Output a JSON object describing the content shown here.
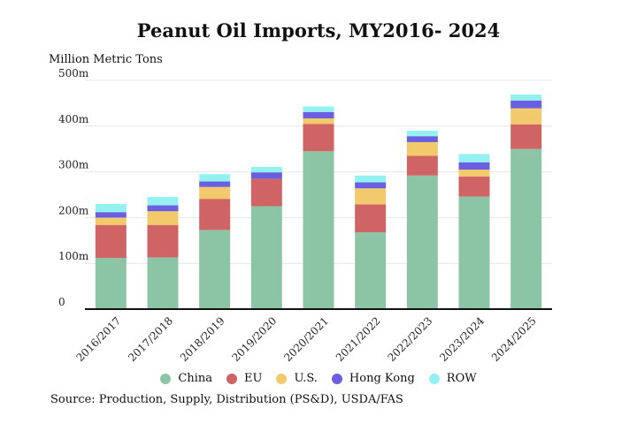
{
  "chart_data": {
    "type": "bar",
    "stacked": true,
    "title": "Peanut Oil Imports, MY2016- 2024",
    "ylabel": "Million Metric Tons",
    "xlabel": "",
    "ylim": [
      0,
      500
    ],
    "yticks": [
      0,
      100,
      200,
      300,
      400,
      500
    ],
    "ytick_labels": [
      "0",
      "100m",
      "200m",
      "300m",
      "400m",
      "500m"
    ],
    "grid": true,
    "legend_position": "bottom",
    "categories": [
      "2016/2017",
      "2017/2018",
      "2018/2019",
      "2019/2020",
      "2020/2021",
      "2021/2022",
      "2022/2023",
      "2023/2024",
      "2024/2025"
    ],
    "series": [
      {
        "name": "China",
        "color": "#8cc5a6",
        "values": [
          112,
          113,
          173,
          225,
          345,
          168,
          292,
          246,
          350
        ]
      },
      {
        "name": "EU",
        "color": "#d06464",
        "values": [
          72,
          71,
          68,
          60,
          60,
          61,
          43,
          44,
          54
        ]
      },
      {
        "name": "U.S.",
        "color": "#f2c96b",
        "values": [
          16,
          30,
          26,
          0,
          12,
          35,
          30,
          15,
          35
        ]
      },
      {
        "name": "Hong Kong",
        "color": "#6a5fe0",
        "values": [
          12,
          13,
          12,
          14,
          14,
          13,
          13,
          16,
          17
        ]
      },
      {
        "name": "ROW",
        "color": "#94f1f1",
        "values": [
          18,
          18,
          16,
          12,
          12,
          15,
          12,
          18,
          13
        ]
      }
    ]
  },
  "source": "Source: Production, Supply, Distribution (PS&D), USDA/FAS"
}
